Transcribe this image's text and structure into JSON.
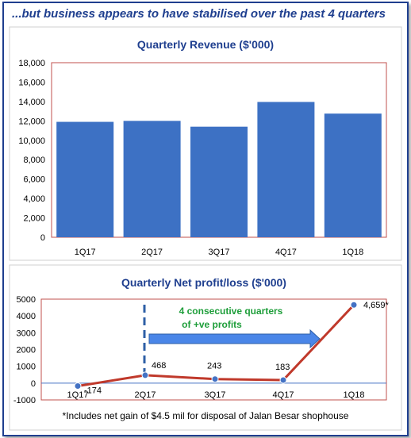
{
  "header": {
    "title": "...but business appears to have stabilised over the past 4 quarters"
  },
  "colors": {
    "bar": "#3d71c4",
    "line": "#c0392b",
    "marker": "#4472c4",
    "annotation": "#1e9e3a",
    "arrow": "#4a86e8",
    "dashed": "#2e5fa6"
  },
  "chart_data": [
    {
      "type": "bar",
      "title": "Quarterly Revenue ($'000)",
      "categories": [
        "1Q17",
        "2Q17",
        "3Q17",
        "4Q17",
        "1Q18"
      ],
      "values": [
        11900,
        12000,
        11400,
        13950,
        12750
      ],
      "ylim": [
        0,
        18000
      ],
      "yticks": [
        "0",
        "2,000",
        "4,000",
        "6,000",
        "8,000",
        "10,000",
        "12,000",
        "14,000",
        "16,000",
        "18,000"
      ],
      "grid": false,
      "legend": "none"
    },
    {
      "type": "line",
      "title": "Quarterly Net profit/loss ($'000)",
      "categories": [
        "1Q17",
        "2Q17",
        "3Q17",
        "4Q17",
        "1Q18"
      ],
      "values": [
        -174,
        468,
        243,
        183,
        4659
      ],
      "labels": [
        "-174",
        "468",
        "243",
        "183",
        "4,659*"
      ],
      "ylim": [
        -1000,
        5000
      ],
      "yticks": [
        "-1000",
        "0",
        "1000",
        "2000",
        "3000",
        "4000",
        "5000"
      ],
      "annotation": {
        "line1": "4 consecutive quarters",
        "line2": "of +ve profits"
      },
      "grid": false,
      "legend": "none"
    }
  ],
  "footnote": "*Includes net gain of $4.5 mil for disposal of Jalan Besar shophouse"
}
